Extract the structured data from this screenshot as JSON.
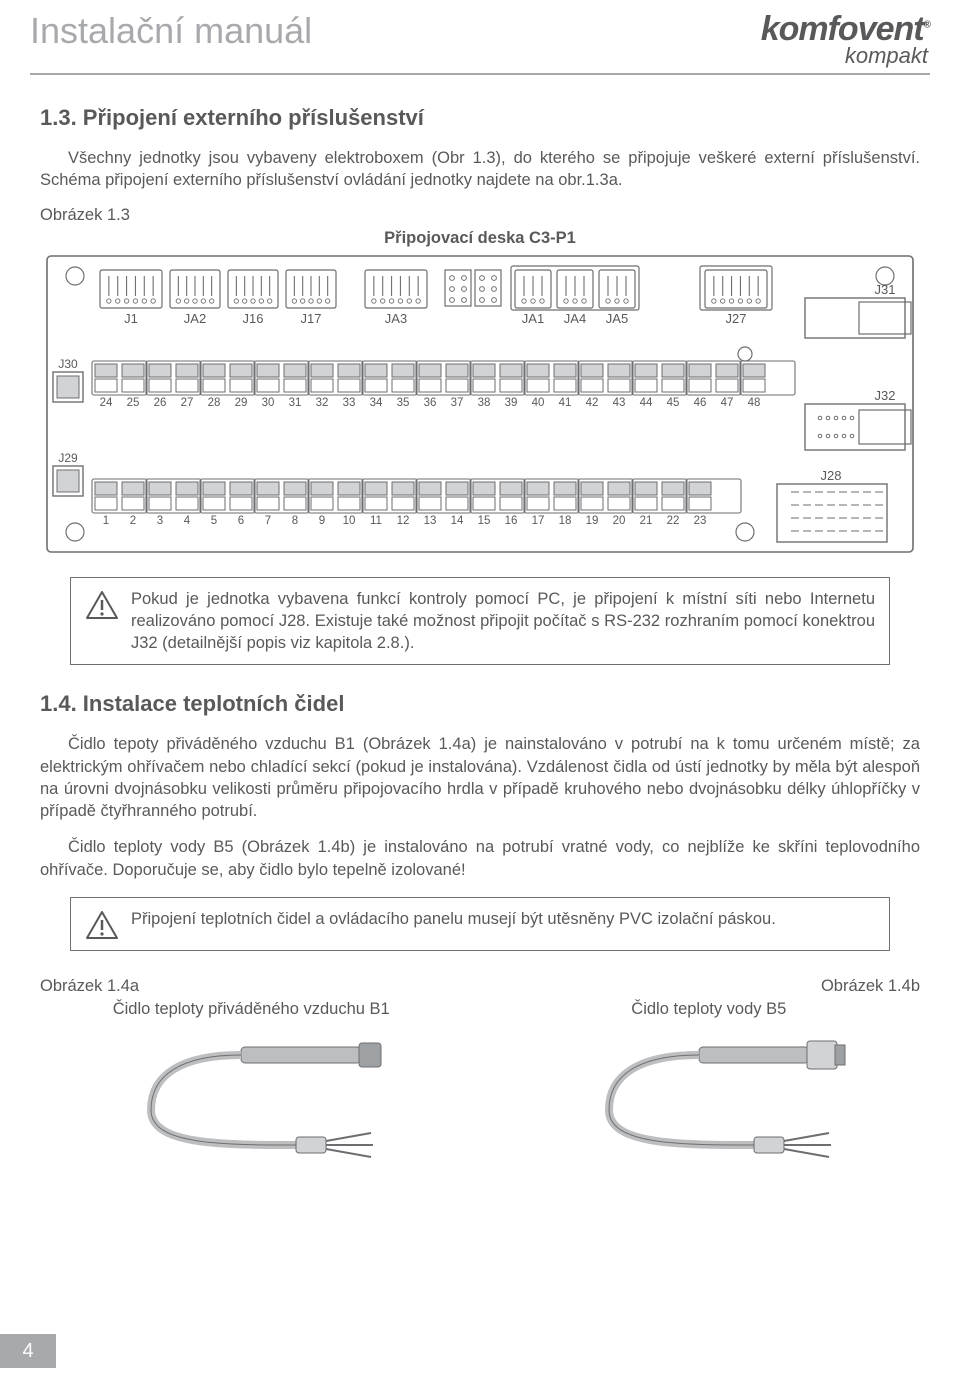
{
  "header": {
    "title": "Instalační manuál",
    "brand_main": "komfovent",
    "brand_reg": "®",
    "brand_sub": "kompakt"
  },
  "section13": {
    "heading": "1.3. Připojení externího příslušenství",
    "p1a": "Všechny jednotky jsou vybaveny elektroboxem (Obr 1.3), do kterého se připojuje veškeré externí příslušenství. Schéma připojení externího příslušenství ovládání jednotky najdete na obr.1.3a.",
    "fig_label": "Obrázek 1.3",
    "fig_title": "Připojovací deska C3-P1"
  },
  "board": {
    "top_connectors": [
      "J1",
      "JA2",
      "J16",
      "J17",
      "JA3",
      "JA1",
      "JA4",
      "JA5",
      "J27"
    ],
    "right_side": [
      "J31",
      "J32",
      "J28"
    ],
    "left_side": [
      "J30",
      "J29"
    ],
    "row_top_nums": [
      24,
      25,
      26,
      27,
      28,
      29,
      30,
      31,
      32,
      33,
      34,
      35,
      36,
      37,
      38,
      39,
      40,
      41,
      42,
      43,
      44,
      45,
      46,
      47,
      48
    ],
    "row_bot_nums": [
      1,
      2,
      3,
      4,
      5,
      6,
      7,
      8,
      9,
      10,
      11,
      12,
      13,
      14,
      15,
      16,
      17,
      18,
      19,
      20,
      21,
      22,
      23
    ]
  },
  "note1": "Pokud je jednotka vybavena funkcí kontroly pomocí PC, je připojení k místní síti nebo Internetu realizováno pomocí J28. Existuje také možnost připojit počítač s RS-232 rozhraním pomocí konektrou J32 (detailnější popis viz kapitola 2.8.).",
  "section14": {
    "heading": "1.4. Instalace teplotních čidel",
    "p1": "Čidlo tepoty přiváděného vzduchu B1 (Obrázek 1.4a) je nainstalováno v potrubí na k tomu určeném místě; za elektrickým ohřívačem nebo chladící sekcí (pokud je instalována). Vzdálenost čidla od ústí jednotky by měla být alespoň na úrovni dvojnásobku velikosti průměru připojovacího hrdla v případě kruhového nebo dvojnásobku délky úhlopříčky v případě čtyřhranného potrubí.",
    "p2": "Čidlo teploty vody B5 (Obrázek 1.4b) je instalováno na potrubí vratné vody, co nejblíže ke skříni teplovodního ohřívače. Doporučuje se, aby čidlo bylo tepelně izolované!"
  },
  "note2": "Připojení teplotních čidel a ovládacího panelu musejí být utěsněny PVC izolační páskou.",
  "figs": {
    "label_a": "Obrázek 1.4a",
    "label_b": "Obrázek 1.4b",
    "caption_a": "Čidlo teploty přiváděného vzduchu B1",
    "caption_b": "Čidlo teploty vody B5"
  },
  "page_number": "4",
  "colors": {
    "text": "#58595b",
    "light": "#a7a9ac",
    "board_line": "#6d6e71",
    "board_fill": "#d1d3d4"
  }
}
